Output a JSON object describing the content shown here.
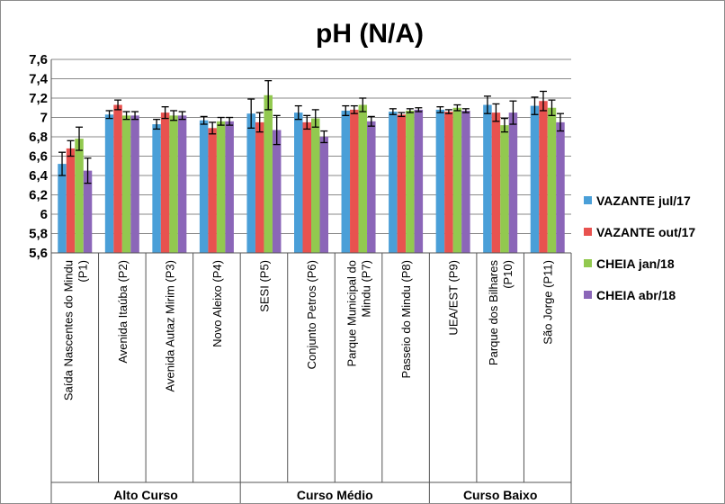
{
  "chart_data": {
    "type": "bar",
    "title": "pH (N/A)",
    "ylim": [
      5.6,
      7.6
    ],
    "yticks": [
      "7,6",
      "7,4",
      "7,2",
      "7",
      "6,8",
      "6,6",
      "6,4",
      "6,2",
      "6",
      "5,8",
      "5,6"
    ],
    "categories": [
      "Saída Nascentes do Mindu (P1)",
      "Avenida Itaúba (P2)",
      "Avenida Autaz Mirim (P3)",
      "Novo Aleixo (P4)",
      "SESI (P5)",
      "Conjunto Petros (P6)",
      "Parque Municipal do Mindu (P7)",
      "Passeio do Mindu (P8)",
      "UEA/EST (P9)",
      "Parque dos Bilhares (P10)",
      "São Jorge (P11)"
    ],
    "groups": [
      {
        "label": "Alto Curso",
        "count": 4
      },
      {
        "label": "Curso Médio",
        "count": 4
      },
      {
        "label": "Curso Baixo",
        "count": 3
      }
    ],
    "series": [
      {
        "name": "VAZANTE jul/17",
        "color": "#4a9fd8",
        "values": [
          6.52,
          7.03,
          6.93,
          6.97,
          7.04,
          7.05,
          7.07,
          7.06,
          7.08,
          7.13,
          7.12
        ],
        "errors": [
          0.12,
          0.04,
          0.05,
          0.04,
          0.15,
          0.07,
          0.05,
          0.03,
          0.03,
          0.09,
          0.09
        ]
      },
      {
        "name": "VAZANTE out/17",
        "color": "#e8524f",
        "values": [
          6.68,
          7.13,
          7.05,
          6.89,
          6.95,
          6.95,
          7.08,
          7.03,
          7.06,
          7.05,
          7.17
        ],
        "errors": [
          0.08,
          0.05,
          0.06,
          0.06,
          0.1,
          0.07,
          0.04,
          0.02,
          0.02,
          0.09,
          0.1
        ]
      },
      {
        "name": "CHEIA jan/18",
        "color": "#92c94f",
        "values": [
          6.78,
          7.02,
          7.02,
          6.96,
          7.23,
          6.99,
          7.13,
          7.07,
          7.1,
          6.92,
          7.1
        ],
        "errors": [
          0.12,
          0.04,
          0.05,
          0.04,
          0.15,
          0.09,
          0.07,
          0.02,
          0.03,
          0.07,
          0.08
        ]
      },
      {
        "name": "CHEIA abr/18",
        "color": "#8b66b8",
        "values": [
          6.45,
          7.02,
          7.02,
          6.96,
          6.87,
          6.8,
          6.96,
          7.08,
          7.07,
          7.05,
          6.95
        ],
        "errors": [
          0.13,
          0.04,
          0.04,
          0.04,
          0.15,
          0.06,
          0.05,
          0.02,
          0.02,
          0.12,
          0.09
        ]
      }
    ],
    "legend_position": "right",
    "grid": true
  }
}
